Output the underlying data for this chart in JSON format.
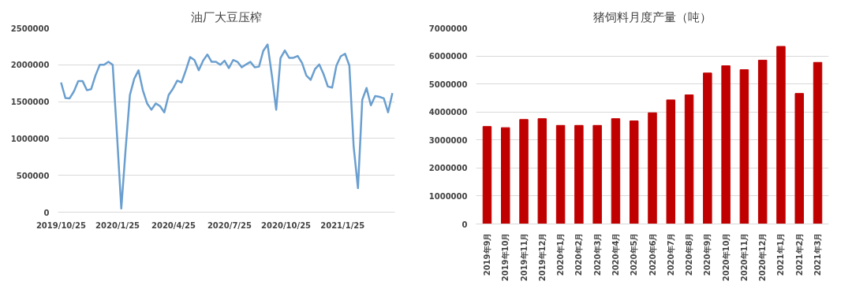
{
  "chart_data": [
    {
      "type": "line",
      "title": "油厂大豆压榨",
      "x": [
        "2019-10-25",
        "2019-11-01",
        "2019-11-08",
        "2019-11-15",
        "2019-11-22",
        "2019-11-29",
        "2019-12-06",
        "2019-12-13",
        "2019-12-20",
        "2019-12-27",
        "2020-01-03",
        "2020-01-10",
        "2020-01-17",
        "2020-01-24",
        "2020-01-31",
        "2020-02-07",
        "2020-02-14",
        "2020-02-21",
        "2020-02-28",
        "2020-03-06",
        "2020-03-13",
        "2020-03-20",
        "2020-03-27",
        "2020-04-03",
        "2020-04-10",
        "2020-04-17",
        "2020-04-24",
        "2020-05-01",
        "2020-05-08",
        "2020-05-15",
        "2020-05-22",
        "2020-05-29",
        "2020-06-05",
        "2020-06-12",
        "2020-06-19",
        "2020-06-26",
        "2020-07-03",
        "2020-07-10",
        "2020-07-17",
        "2020-07-24",
        "2020-07-31",
        "2020-08-07",
        "2020-08-14",
        "2020-08-21",
        "2020-08-28",
        "2020-09-04",
        "2020-09-11",
        "2020-09-18",
        "2020-09-25",
        "2020-10-02",
        "2020-10-09",
        "2020-10-16",
        "2020-10-23",
        "2020-10-30",
        "2020-11-06",
        "2020-11-13",
        "2020-11-20",
        "2020-11-27",
        "2020-12-04",
        "2020-12-11",
        "2020-12-18",
        "2020-12-25",
        "2021-01-01",
        "2021-01-08",
        "2021-01-15",
        "2021-01-22",
        "2021-01-29",
        "2021-02-05",
        "2021-02-12",
        "2021-02-19",
        "2021-02-26",
        "2021-03-05",
        "2021-03-12",
        "2021-03-19",
        "2021-03-26",
        "2021-04-02",
        "2021-04-09",
        "2021-04-16"
      ],
      "series": [
        {
          "color": "#6a9fcf",
          "values": [
            1760000,
            1550000,
            1545000,
            1640000,
            1780000,
            1780000,
            1655000,
            1670000,
            1855000,
            2000000,
            2000000,
            2040000,
            2000000,
            1050000,
            50000,
            850000,
            1590000,
            1810000,
            1925000,
            1655000,
            1475000,
            1390000,
            1475000,
            1440000,
            1355000,
            1590000,
            1675000,
            1785000,
            1760000,
            1925000,
            2105000,
            2065000,
            1925000,
            2055000,
            2140000,
            2040000,
            2040000,
            2000000,
            2055000,
            1955000,
            2065000,
            2040000,
            1965000,
            2005000,
            2040000,
            1965000,
            1975000,
            2190000,
            2275000,
            1855000,
            1390000,
            2090000,
            2195000,
            2095000,
            2095000,
            2120000,
            2025000,
            1855000,
            1795000,
            1940000,
            2005000,
            1875000,
            1705000,
            1690000,
            1990000,
            2115000,
            2150000,
            1990000,
            890000,
            325000,
            1525000,
            1685000,
            1450000,
            1575000,
            1565000,
            1545000,
            1355000,
            1615000
          ]
        }
      ],
      "xlim": [
        "2019-10-20",
        "2021-04-20"
      ],
      "xticks": [
        {
          "value": "2019-10-25",
          "label": "2019/10/25"
        },
        {
          "value": "2020-01-25",
          "label": "2020/1/25"
        },
        {
          "value": "2020-04-25",
          "label": "2020/4/25"
        },
        {
          "value": "2020-07-25",
          "label": "2020/7/25"
        },
        {
          "value": "2020-10-25",
          "label": "2020/10/25"
        },
        {
          "value": "2021-01-25",
          "label": "2021/1/25"
        }
      ],
      "ylim": [
        0,
        2500000
      ],
      "yticks": [
        0,
        500000,
        1000000,
        1500000,
        2000000,
        2500000
      ],
      "grid": "y",
      "line_style": "solid",
      "marker": "none"
    },
    {
      "type": "bar",
      "title": "猪饲料月度产量（吨）",
      "categories": [
        "2019年9月",
        "2019年10月",
        "2019年11月",
        "2019年12月",
        "2020年1月",
        "2020年2月",
        "2020年3月",
        "2020年4月",
        "2020年5月",
        "2020年6月",
        "2020年7月",
        "2020年8月",
        "2020年9月",
        "2020年10月",
        "2020年11月",
        "2020年12月",
        "2021年1月",
        "2021年2月",
        "2021年3月"
      ],
      "series": [
        {
          "color": "#c00000",
          "values": [
            3480000,
            3440000,
            3730000,
            3760000,
            3520000,
            3520000,
            3520000,
            3760000,
            3680000,
            3970000,
            4430000,
            4610000,
            5390000,
            5650000,
            5510000,
            5850000,
            6340000,
            4660000,
            5770000
          ]
        }
      ],
      "ylim": [
        0,
        7000000
      ],
      "yticks": [
        0,
        1000000,
        2000000,
        3000000,
        4000000,
        5000000,
        6000000,
        7000000
      ],
      "grid": "y"
    }
  ]
}
